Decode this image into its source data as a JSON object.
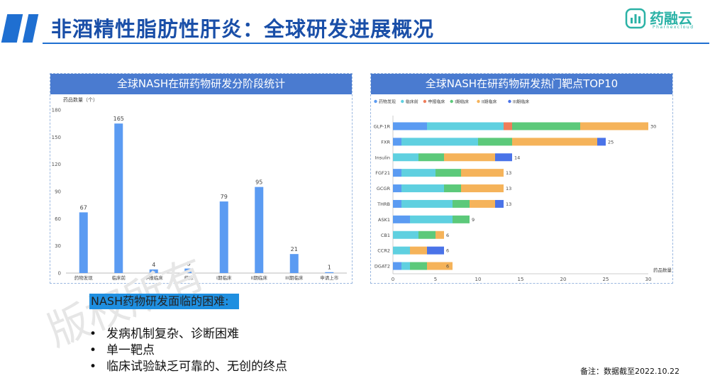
{
  "title": "非酒精性脂肪性肝炎：全球研发进展概况",
  "logo": {
    "name": "药融云",
    "sub": "Pharnexcloud",
    "icon": "pharnexcloud-logo-icon"
  },
  "watermark": "版权所有",
  "left_chart": {
    "header": "全球NASH在研药物研发分阶段统计",
    "ylabel": "药品数量（个）",
    "color": "#5b9bf2"
  },
  "right_chart": {
    "header": "全球NASH在研药物研发热门靶点TOP10",
    "xlabel": "药品数量"
  },
  "chart_data": [
    {
      "type": "bar",
      "title": "全球NASH在研药物研发分阶段统计",
      "ylabel": "药品数量（个）",
      "xlabel": "",
      "categories": [
        "药物发现",
        "临床前",
        "申报临床",
        "临床",
        "I期临床",
        "II期临床",
        "III期临床",
        "申请上市"
      ],
      "values": [
        67,
        165,
        4,
        5,
        79,
        95,
        21,
        1
      ],
      "ylim": [
        0,
        180
      ],
      "yticks": [
        0,
        30,
        60,
        90,
        120,
        150,
        180
      ],
      "grid": false
    },
    {
      "type": "bar",
      "orientation": "horizontal",
      "stacked": true,
      "title": "全球NASH在研药物研发热门靶点TOP10",
      "xlabel": "药品数量",
      "categories": [
        "GLP-1R",
        "FXR",
        "Insulin",
        "FGF21",
        "GCGR",
        "THRB",
        "ASK1",
        "CB1",
        "CCR2",
        "DGAT2"
      ],
      "totals": [
        30,
        25,
        14,
        13,
        13,
        13,
        9,
        6,
        6,
        6
      ],
      "xlim": [
        0,
        30
      ],
      "xticks": [
        0,
        5,
        10,
        15,
        20,
        25,
        30
      ],
      "legend": "top-left",
      "series": [
        {
          "name": "药物发现",
          "color": "#5b9bf2",
          "values": [
            4,
            1,
            0,
            1,
            1,
            1,
            2,
            0,
            0,
            1
          ]
        },
        {
          "name": "临床前",
          "color": "#5fd0e0",
          "values": [
            9,
            9,
            3,
            4,
            5,
            6,
            5,
            3,
            2,
            1
          ]
        },
        {
          "name": "申报临床",
          "color": "#ef7d5a",
          "values": [
            1,
            0,
            0,
            0,
            0,
            0,
            0,
            0,
            0,
            0
          ]
        },
        {
          "name": "I期临床",
          "color": "#5cc97a",
          "values": [
            8,
            4,
            3,
            3,
            2,
            2,
            2,
            2,
            0,
            2
          ]
        },
        {
          "name": "II期临床",
          "color": "#f5b35a",
          "values": [
            8,
            10,
            6,
            5,
            5,
            3,
            0,
            1,
            2,
            3
          ]
        },
        {
          "name": "III期临床",
          "color": "#4a73e8",
          "values": [
            0,
            1,
            2,
            0,
            0,
            1,
            0,
            0,
            2,
            0
          ]
        }
      ]
    }
  ],
  "section_label": "NASH药物研发面临的困难:",
  "bullets": [
    "发病机制复杂、诊断困难",
    "单一靶点",
    "临床试验缺乏可靠的、无创的终点"
  ],
  "bullet_symbol": "•",
  "note": "备注：数据截至2022.10.22"
}
